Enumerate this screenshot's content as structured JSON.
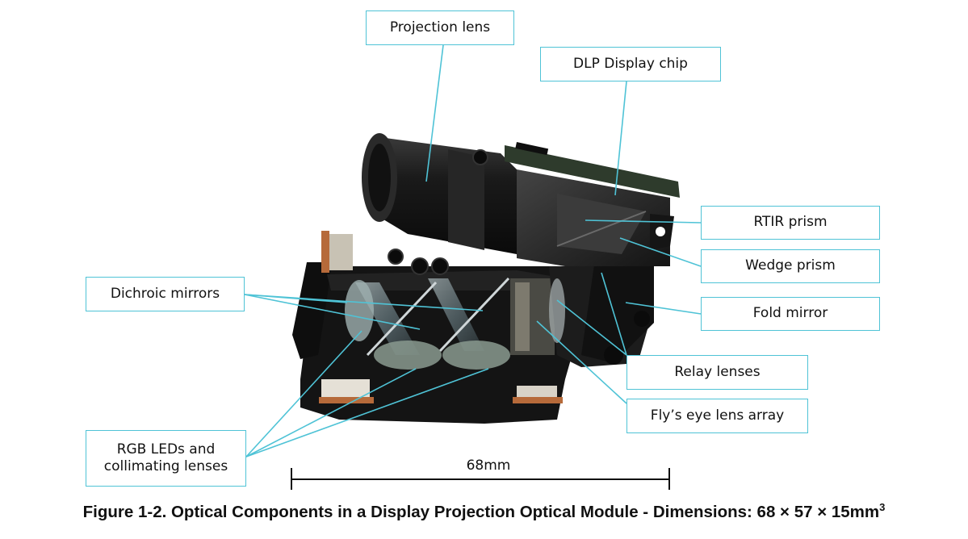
{
  "labels": {
    "projection_lens": "Projection lens",
    "dlp_chip": "DLP Display chip",
    "rtir_prism": "RTIR prism",
    "wedge_prism": "Wedge prism",
    "fold_mirror": "Fold mirror",
    "relay_lenses": "Relay lenses",
    "flys_eye": "Fly’s eye lens array",
    "dichroic_mirrors": "Dichroic mirrors",
    "rgb_leds_line1": "RGB LEDs and",
    "rgb_leds_line2": "collimating lenses"
  },
  "scale_bar": {
    "label": "68mm"
  },
  "caption": {
    "text": "Figure 1-2. Optical Components in a Display Projection Optical Module - Dimensions: 68 × 57 × 15mm",
    "superscript": "3"
  },
  "colors": {
    "leader_line": "#4fc3d6",
    "module_body": "#161616",
    "circuit_board": "#2e3b2c"
  }
}
